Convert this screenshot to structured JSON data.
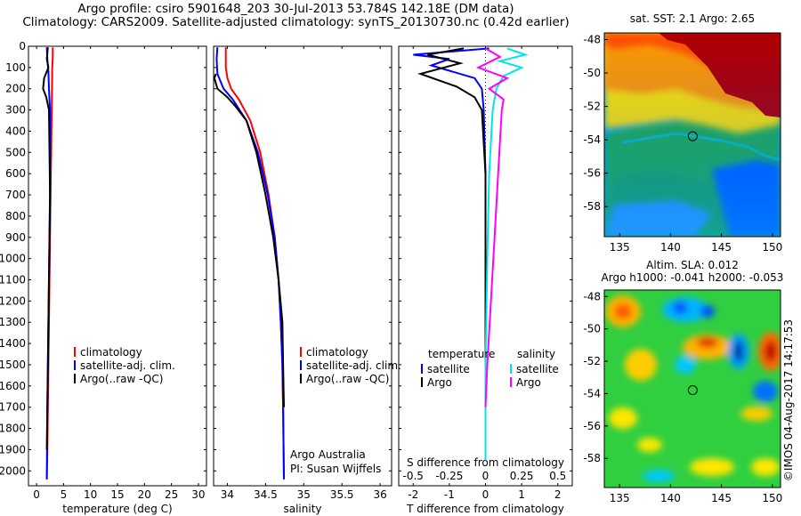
{
  "title_line1": "Argo profile: csiro 5901648_203 30-Jul-2013 53.784S 142.18E (DM data)",
  "title_line2": "Climatology: CARS2009. Satellite-adjusted climatology: synTS_20130730.nc (0.42d earlier)",
  "colors": {
    "climatology": "#ff0000",
    "satellite": "#0000ff",
    "argo": "#000000",
    "salinity_satellite": "#00e5e5",
    "salinity_argo": "#ff00ff"
  },
  "credit": {
    "line1": "Argo Australia",
    "line2": "PI: Susan Wijffels",
    "watermark": "©IMOS 04-Aug-2017 14:17:53"
  },
  "chart_data": [
    {
      "id": "temperature",
      "type": "line",
      "xlabel": "temperature (deg C)",
      "ylabel": "",
      "xlim": [
        -1.5,
        31.5
      ],
      "ylim": [
        2070,
        0
      ],
      "xticks": [
        0,
        5,
        10,
        15,
        20,
        25,
        30
      ],
      "xtick_labels": [
        "0",
        "5",
        "10",
        "15",
        "20",
        "25",
        "30"
      ],
      "yticks": [
        0,
        100,
        200,
        300,
        400,
        500,
        600,
        700,
        800,
        900,
        1000,
        1100,
        1200,
        1300,
        1400,
        1500,
        1600,
        1700,
        1800,
        1900,
        2000
      ],
      "ytick_labels": [
        "0",
        "100",
        "200",
        "300",
        "400",
        "500",
        "600",
        "700",
        "800",
        "900",
        "1000",
        "1100",
        "1200",
        "1300",
        "1400",
        "1500",
        "1600",
        "1700",
        "1800",
        "1900",
        "2000"
      ],
      "legend": [
        "climatology",
        "satellite-adj. clim.",
        "Argo(..raw -QC)"
      ],
      "legend_position": "bottom-center",
      "series": [
        {
          "name": "climatology",
          "color": "climatology",
          "x": [
            3.0,
            3.0,
            2.9,
            2.85,
            2.8,
            2.7,
            2.6,
            2.5,
            2.4,
            2.3,
            2.2,
            2.1,
            2.0,
            1.9
          ],
          "y": [
            5,
            50,
            100,
            200,
            300,
            500,
            700,
            900,
            1100,
            1300,
            1500,
            1700,
            1900,
            2040
          ]
        },
        {
          "name": "satellite-adj. clim.",
          "color": "satellite",
          "x": [
            1.9,
            2.0,
            2.2,
            2.3,
            2.5,
            2.55,
            2.5,
            2.4,
            2.3,
            2.2,
            2.1,
            2.0,
            1.9
          ],
          "y": [
            5,
            60,
            120,
            200,
            300,
            500,
            700,
            900,
            1100,
            1300,
            1500,
            1700,
            2040
          ]
        },
        {
          "name": "Argo(..raw -QC)",
          "color": "argo",
          "x": [
            2.1,
            1.9,
            2.2,
            1.4,
            1.2,
            1.8,
            2.3,
            2.4,
            2.5,
            2.4,
            2.3,
            2.2,
            2.1,
            2.0,
            1.9
          ],
          "y": [
            5,
            60,
            100,
            150,
            200,
            240,
            300,
            500,
            700,
            900,
            1100,
            1300,
            1500,
            1700,
            1900
          ]
        }
      ]
    },
    {
      "id": "salinity",
      "type": "line",
      "xlabel": "salinity",
      "ylabel": "",
      "xlim": [
        33.82,
        36.15
      ],
      "ylim": [
        2070,
        0
      ],
      "xticks": [
        34,
        34.5,
        35,
        35.5,
        36
      ],
      "xtick_labels": [
        "34",
        "34.5",
        "35",
        "35.5",
        "36"
      ],
      "legend": [
        "climatology",
        "satellite-adj. clim.",
        "Argo(..raw -QC)"
      ],
      "legend_position": "bottom-right",
      "series": [
        {
          "name": "climatology",
          "color": "climatology",
          "x": [
            33.98,
            33.98,
            34.0,
            34.05,
            34.15,
            34.3,
            34.43,
            34.54,
            34.62,
            34.67,
            34.7,
            34.72,
            34.73,
            34.74
          ],
          "y": [
            5,
            100,
            150,
            200,
            250,
            350,
            500,
            700,
            900,
            1100,
            1300,
            1500,
            1700,
            2040
          ]
        },
        {
          "name": "satellite-adj. clim.",
          "color": "satellite",
          "x": [
            33.87,
            33.86,
            33.87,
            33.95,
            34.07,
            34.25,
            34.4,
            34.53,
            34.62,
            34.67,
            34.7,
            34.72,
            34.73,
            34.74
          ],
          "y": [
            5,
            60,
            130,
            200,
            250,
            350,
            500,
            700,
            900,
            1100,
            1300,
            1500,
            1700,
            2040
          ]
        },
        {
          "name": "Argo(..raw -QC)",
          "color": "argo",
          "x": [
            33.85,
            33.83,
            33.87,
            34.0,
            34.1,
            34.25,
            34.38,
            34.5,
            34.6,
            34.67,
            34.72,
            34.73,
            34.74
          ],
          "y": [
            130,
            150,
            200,
            240,
            280,
            350,
            500,
            700,
            900,
            1100,
            1300,
            1500,
            1700
          ]
        }
      ]
    },
    {
      "id": "difference",
      "type": "line",
      "xlabel": "T difference from climatology",
      "xlabel_top": "S difference from climatology",
      "xlim": [
        -2.4,
        2.4
      ],
      "ylim": [
        2070,
        0
      ],
      "xticks": [
        -2,
        -1,
        0,
        1,
        2
      ],
      "xtick_labels": [
        "-2",
        "-1",
        "0",
        "1",
        "2"
      ],
      "sticks": [
        -2,
        -1,
        0,
        1,
        2
      ],
      "stick_labels": [
        "-0.5",
        "-0.25",
        "0",
        "0.25",
        "0.5"
      ],
      "legend_groups": [
        {
          "title": "temperature",
          "items": [
            "satellite",
            "Argo"
          ]
        },
        {
          "title": "salinity",
          "items": [
            "satellite",
            "Argo"
          ]
        }
      ],
      "legend_position": "bottom-center",
      "series": [
        {
          "name": "T satellite",
          "color": "satellite",
          "x": [
            0.1,
            -2.0,
            -1.0,
            -1.5,
            -0.3,
            -0.1,
            -0.05,
            0,
            0,
            0,
            0,
            0
          ],
          "y": [
            10,
            40,
            60,
            90,
            150,
            200,
            300,
            600,
            1000,
            1400,
            1800,
            1950
          ]
        },
        {
          "name": "T Argo",
          "color": "argo",
          "x": [
            -0.6,
            -1.6,
            -0.7,
            -1.8,
            -0.8,
            -0.3,
            -0.1,
            0,
            0,
            0,
            0
          ],
          "y": [
            10,
            40,
            80,
            130,
            190,
            240,
            300,
            600,
            1000,
            1500,
            1850
          ]
        },
        {
          "name": "S satellite",
          "color": "salinity_satellite",
          "x": [
            0.6,
            1.1,
            0.4,
            1.0,
            0.5,
            0.3,
            0.2,
            0.1,
            0.05,
            0,
            0
          ],
          "y": [
            10,
            40,
            70,
            100,
            140,
            200,
            300,
            600,
            1000,
            1500,
            1950
          ]
        },
        {
          "name": "S Argo",
          "color": "salinity_argo",
          "x": [
            0,
            0.4,
            -0.2,
            0.6,
            0.1,
            0.5,
            0.45,
            0.35,
            0.25,
            0.15,
            0.05,
            0
          ],
          "y": [
            10,
            50,
            100,
            150,
            200,
            250,
            300,
            600,
            900,
            1200,
            1500,
            1700
          ]
        }
      ]
    },
    {
      "id": "sst-map",
      "type": "heatmap",
      "title": "sat. SST: 2.1 Argo: 2.65",
      "xlim": [
        133.5,
        150.8
      ],
      "ylim": [
        -59.8,
        -47.6
      ],
      "xticks": [
        135,
        140,
        145,
        150
      ],
      "xtick_labels": [
        "135",
        "140",
        "145",
        "150"
      ],
      "yticks": [
        -48,
        -50,
        -52,
        -54,
        -56,
        -58
      ],
      "ytick_labels": [
        "-48",
        "-50",
        "-52",
        "-54",
        "-56",
        "-58"
      ],
      "marker": {
        "lon": 142.18,
        "lat": -53.784
      }
    },
    {
      "id": "sla-map",
      "type": "heatmap",
      "title_line1": "Altim. SLA: 0.012",
      "title_line2": "Argo h1000: -0.041 h2000: -0.053",
      "xlim": [
        133.5,
        150.8
      ],
      "ylim": [
        -59.8,
        -47.6
      ],
      "xticks": [
        135,
        140,
        145,
        150
      ],
      "xtick_labels": [
        "135",
        "140",
        "145",
        "150"
      ],
      "yticks": [
        -48,
        -50,
        -52,
        -54,
        -56,
        -58
      ],
      "ytick_labels": [
        "-48",
        "-50",
        "-52",
        "-54",
        "-56",
        "-58"
      ],
      "marker": {
        "lon": 142.18,
        "lat": -53.784
      }
    }
  ]
}
